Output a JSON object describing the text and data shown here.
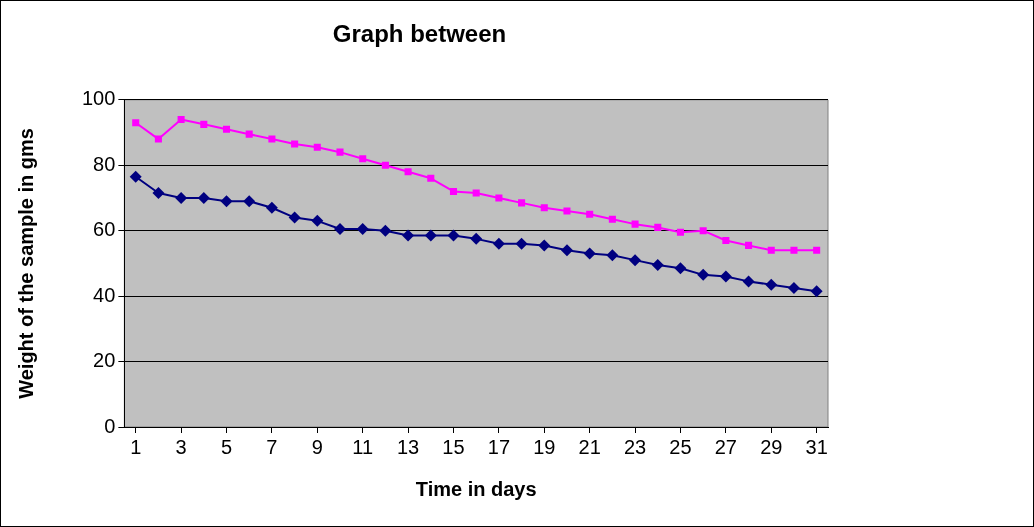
{
  "chart_data": {
    "type": "line",
    "title": "Graph between",
    "xlabel": "Time in days",
    "ylabel": "Weight of the sample in gms",
    "x": [
      1,
      2,
      3,
      4,
      5,
      6,
      7,
      8,
      9,
      10,
      11,
      12,
      13,
      14,
      15,
      16,
      17,
      18,
      19,
      20,
      21,
      22,
      23,
      24,
      25,
      26,
      27,
      28,
      29,
      30,
      31
    ],
    "xlim": [
      0.5,
      31.5
    ],
    "xticks": [
      1,
      3,
      5,
      7,
      9,
      11,
      13,
      15,
      17,
      19,
      21,
      23,
      25,
      27,
      29,
      31
    ],
    "series": [
      {
        "color": "#ff00ff",
        "marker": "square",
        "values": [
          93,
          88,
          94,
          92.5,
          91,
          89.5,
          88,
          86.5,
          85.5,
          84,
          82,
          80,
          78,
          76,
          72,
          71.5,
          70,
          68.5,
          67,
          66,
          65,
          63.5,
          62,
          61,
          59.5,
          60,
          57,
          55.5,
          54,
          54,
          54
        ]
      },
      {
        "color": "#000080",
        "marker": "diamond",
        "values": [
          76.5,
          71.5,
          70,
          70,
          69,
          69,
          67,
          64,
          63,
          60.5,
          60.5,
          60,
          58.5,
          58.5,
          58.5,
          57.5,
          56,
          56,
          55.5,
          54,
          53,
          52.5,
          51,
          49.5,
          48.5,
          46.5,
          46,
          44.5,
          43.5,
          42.5,
          41.5
        ]
      }
    ],
    "ylim": [
      0,
      100
    ],
    "yticks": [
      0,
      20,
      40,
      60,
      80,
      100
    ],
    "grid": "y",
    "legend": false,
    "line_style": "solid"
  }
}
